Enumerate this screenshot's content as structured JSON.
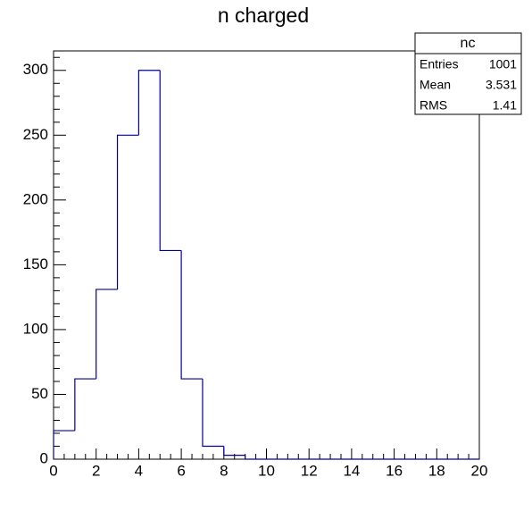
{
  "chart_data": {
    "type": "histogram",
    "title": "n charged",
    "bins": [
      0,
      1,
      2,
      3,
      4,
      5,
      6,
      7,
      8,
      9,
      10,
      11,
      12,
      13,
      14,
      15,
      16,
      17,
      18,
      19,
      20
    ],
    "values": [
      22,
      62,
      131,
      250,
      300,
      161,
      62,
      10,
      3,
      0,
      0,
      0,
      0,
      0,
      0,
      0,
      0,
      0,
      0,
      0
    ],
    "color": "#000099",
    "xlim": [
      0,
      20
    ],
    "xticks": [
      0,
      2,
      4,
      6,
      8,
      10,
      12,
      14,
      16,
      18,
      20
    ],
    "ylim": [
      0,
      315
    ],
    "yticks": [
      0,
      50,
      100,
      150,
      200,
      250,
      300
    ],
    "grid": false,
    "stats": {
      "title": "nc",
      "rows": [
        {
          "label": "Entries",
          "value": 1001
        },
        {
          "label": "Mean",
          "value": 3.531
        },
        {
          "label": "RMS",
          "value": 1.41
        }
      ]
    }
  }
}
